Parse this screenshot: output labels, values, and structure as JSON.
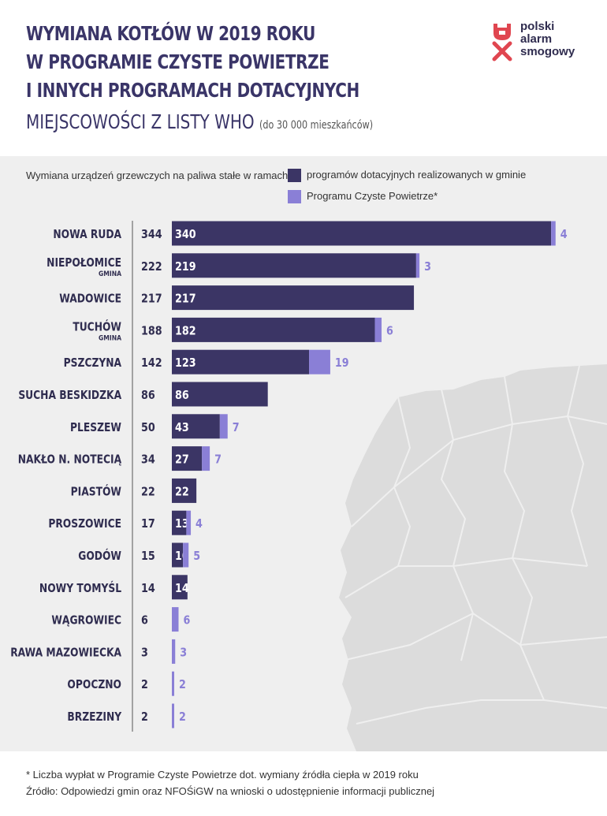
{
  "header": {
    "title_lines": [
      "WYMIANA KOTŁÓW W 2019 ROKU",
      "W PROGRAMIE CZYSTE POWIETRZE",
      "I INNYCH PROGRAMACH DOTACYJNYCH"
    ],
    "subtitle": "MIEJSCOWOŚCI Z LISTY WHO",
    "subtitle_note": "(do 30 000 mieszkańców)"
  },
  "logo": {
    "lines": [
      "polski",
      "alarm",
      "smogowy"
    ]
  },
  "legend": {
    "intro": "Wymiana urządzeń grzewczych na paliwa stałe w ramach:",
    "items": [
      {
        "label": "programów dotacyjnych realizowanych w gminie",
        "color": "#3b3565"
      },
      {
        "label": "Programu Czyste Powietrze*",
        "color": "#8a7fd6"
      }
    ]
  },
  "chart_data": {
    "type": "bar",
    "orientation": "horizontal",
    "stacked": true,
    "categories": [
      "NOWA RUDA",
      "NIEPOŁOMICE",
      "WADOWICE",
      "TUCHÓW",
      "PSZCZYNA",
      "SUCHA BESKIDZKA",
      "PLESZEW",
      "NAKŁO N. NOTECIĄ",
      "PIASTÓW",
      "PROSZOWICE",
      "GODÓW",
      "NOWY TOMYŚL",
      "WĄGROWIEC",
      "RAWA MAZOWIECKA",
      "OPOCZNO",
      "BRZEZINY"
    ],
    "category_notes": [
      "",
      "GMINA",
      "",
      "GMINA",
      "",
      "",
      "",
      "",
      "",
      "",
      "",
      "",
      "",
      "",
      "",
      ""
    ],
    "totals": [
      344,
      222,
      217,
      188,
      142,
      86,
      50,
      34,
      22,
      17,
      15,
      14,
      6,
      3,
      2,
      2
    ],
    "series": [
      {
        "name": "programów dotacyjnych realizowanych w gminie",
        "color": "#3b3565",
        "values": [
          340,
          219,
          217,
          182,
          123,
          86,
          43,
          27,
          22,
          13,
          10,
          14,
          0,
          0,
          0,
          0
        ]
      },
      {
        "name": "Programu Czyste Powietrze*",
        "color": "#8a7fd6",
        "values": [
          4,
          3,
          0,
          6,
          19,
          0,
          7,
          7,
          0,
          4,
          5,
          0,
          6,
          3,
          2,
          2
        ]
      }
    ]
  },
  "footer": {
    "note": "* Liczba wypłat w Programie Czyste Powietrze dot. wymiany źródła ciepła w 2019 roku",
    "source": "Źródło: Odpowiedzi gmin oraz NFOŚiGW na wnioski o udostępnienie informacji publicznej"
  }
}
